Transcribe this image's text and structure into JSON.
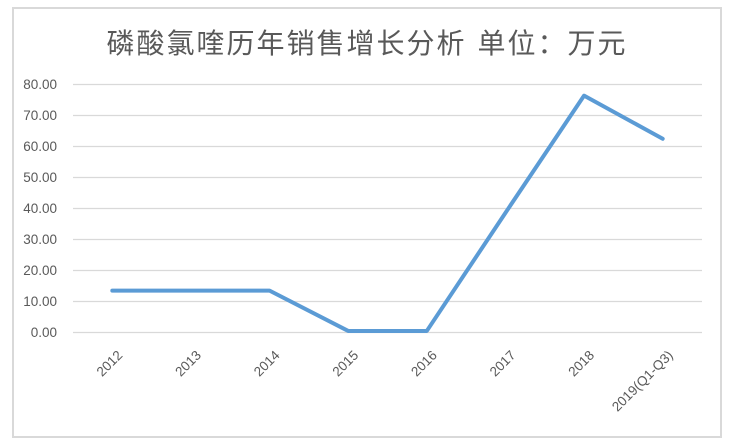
{
  "chart_data": {
    "type": "line",
    "title": "磷酸氯喹历年销售增长分析 单位：万元",
    "categories": [
      "2012",
      "2013",
      "2014",
      "2015",
      "2016",
      "2017",
      "2018",
      "2019(Q1-Q3)"
    ],
    "values": [
      13.5,
      13.5,
      13.5,
      0.5,
      0.5,
      38.6,
      76.4,
      62.5
    ],
    "xlabel": "",
    "ylabel": "",
    "ylim": [
      0,
      80
    ],
    "y_ticks": [
      "0.00",
      "10.00",
      "20.00",
      "30.00",
      "40.00",
      "50.00",
      "60.00",
      "70.00",
      "80.00"
    ],
    "grid": true,
    "legend": false,
    "x_label_rotation_deg": 45
  },
  "colors": {
    "line": "#5B9BD5",
    "gridline": "#D9D9D9",
    "frame_border": "#D9D9D9",
    "axis_label": "#595959",
    "title": "#595959",
    "background": "#FFFFFF"
  }
}
